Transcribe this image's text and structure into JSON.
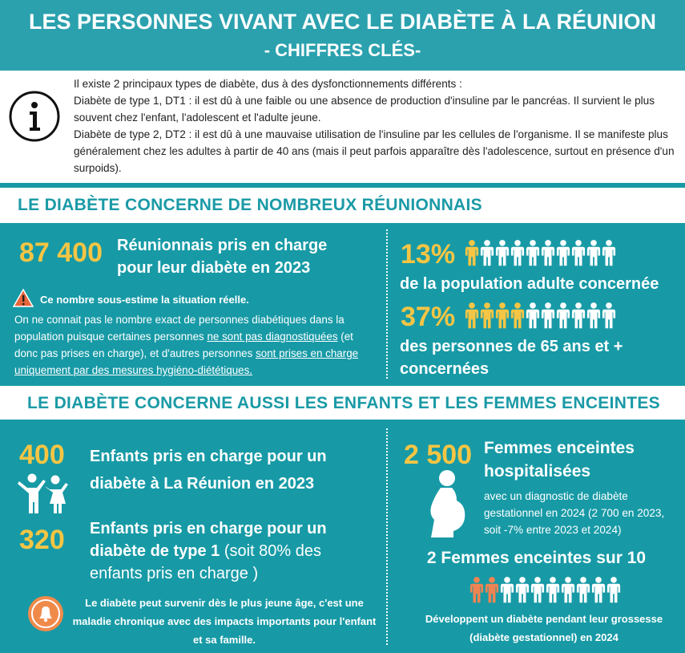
{
  "header": {
    "title": "LES PERSONNES VIVANT AVEC LE DIABÈTE À LA RÉUNION",
    "subtitle": "- CHIFFRES CLÉS-"
  },
  "info": {
    "paragraphs": [
      "Il existe 2 principaux types de diabète, dus à des dysfonctionnements différents :",
      "Diabète de type 1, DT1 : il est dû à une faible ou une absence de production d'insuline par le pancréas. Il survient le plus souvent chez l'enfant, l'adolescent et l'adulte jeune.",
      "Diabète de type 2, DT2 : il est dû à une mauvaise utilisation de l'insuline par les cellules de l'organisme. Il se manifeste plus généralement chez les adultes à partir de 40 ans (mais il peut parfois apparaître dès l'adolescence, surtout en présence d'un surpoids)."
    ]
  },
  "section1": {
    "heading": "LE DIABÈTE CONCERNE DE NOMBREUX RÉUNIONNAIS",
    "main": {
      "value": "87 400",
      "label": "Réunionnais pris en charge pour leur diabète en 2023"
    },
    "warning": "Ce nombre sous-estime la situation réelle.",
    "note": [
      "On ne connait pas le nombre exact de personnes diabétiques dans la population puisque certaines personnes ",
      "ne sont pas diagnostiquées",
      " (et donc pas prises en charge), et d'autres personnes ",
      "sont prises en charge uniquement par des mesures hygiéno-diététiques."
    ],
    "stats": [
      {
        "value": "13%",
        "label": "de la population adulte concernée"
      },
      {
        "value": "37%",
        "label": "des personnes de 65 ans et + concernées"
      }
    ]
  },
  "section2": {
    "heading": "LE DIABÈTE CONCERNE AUSSI LES ENFANTS ET LES FEMMES ENCEINTES",
    "children": [
      {
        "value": "400",
        "label": "Enfants pris en charge pour un diabète à La Réunion en 2023"
      },
      {
        "value": "320",
        "label": "Enfants pris en charge pour un diabète de type 1",
        "detail": " (soit 80% des enfants pris en charge )"
      }
    ],
    "alert": "Le diabète peut survenir dès le plus jeune âge, c'est une maladie chronique avec des impacts importants pour l'enfant et sa famille.",
    "women": {
      "value": "2 500",
      "label": "Femmes enceintes hospitalisées",
      "detail": "avec un diagnostic de diabète gestationnel en 2024 (2 700 en 2023, soit -7% entre 2023 et 2024)"
    },
    "ratio": "2 Femmes enceintes sur 10",
    "ratio_note": "Développent un diabète pendant leur grossesse (diabète gestationnel) en 2024"
  }
}
